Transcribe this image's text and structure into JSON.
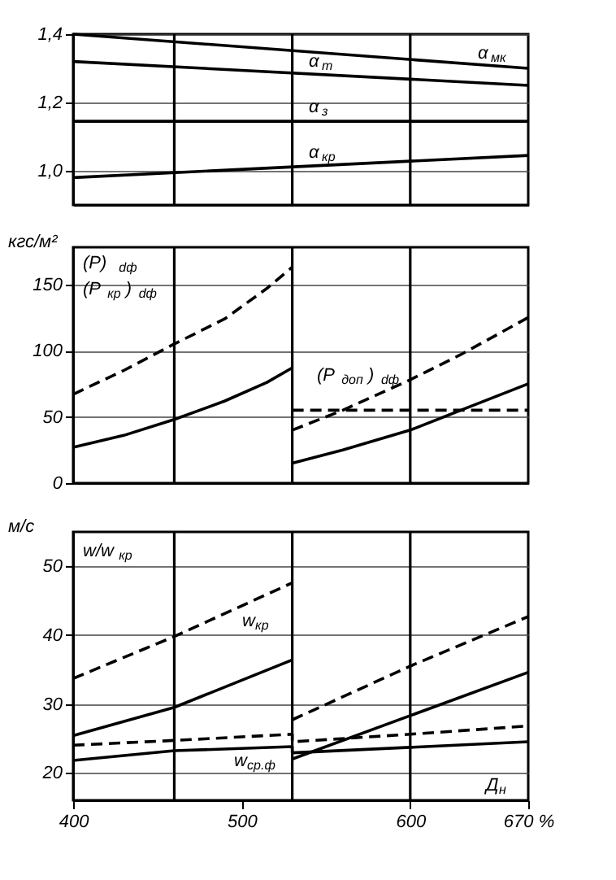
{
  "chart_data": [
    {
      "type": "line",
      "xlim": [
        400,
        670
      ],
      "ylim": [
        0.9,
        1.4
      ],
      "yticks": [
        {
          "value": 1.0,
          "label": "1,0"
        },
        {
          "value": 1.2,
          "label": "1,2"
        },
        {
          "value": 1.4,
          "label": "1,4"
        }
      ],
      "tick_labels": "y",
      "grid": "y",
      "ref_lines": [
        {
          "axis": "x",
          "value": 460
        },
        {
          "axis": "x",
          "value": 530
        },
        {
          "axis": "x",
          "value": 600
        }
      ],
      "series": [
        {
          "color": "#000000",
          "line_style": "solid",
          "x": [
            400,
            670
          ],
          "values": [
            1.4,
            1.3
          ]
        },
        {
          "color": "#000000",
          "line_style": "solid",
          "x": [
            400,
            670
          ],
          "values": [
            1.32,
            1.25
          ]
        },
        {
          "color": "#000000",
          "line_style": "solid",
          "x": [
            400,
            670
          ],
          "values": [
            1.145,
            1.145
          ]
        },
        {
          "color": "#000000",
          "line_style": "solid",
          "x": [
            400,
            670
          ],
          "values": [
            0.98,
            1.045
          ]
        }
      ],
      "annotations": [
        "α$_{мк}$",
        "α$_{т}$",
        "α$_{з}$",
        "α$_{кр}$"
      ]
    },
    {
      "type": "line",
      "xlim": [
        400,
        670
      ],
      "ylim": [
        0,
        178
      ],
      "yticks": [
        0,
        50,
        100,
        150
      ],
      "ylabel": "кгс/м²",
      "tick_labels": "y",
      "grid": "y",
      "ref_lines": [
        {
          "axis": "x",
          "value": 460
        },
        {
          "axis": "x",
          "value": 530
        },
        {
          "axis": "x",
          "value": 600
        }
      ],
      "series": [
        {
          "color": "#000000",
          "line_style": "dashed",
          "x": [
            400,
            430,
            460,
            490,
            515,
            530
          ],
          "values": [
            67,
            85,
            105,
            124,
            147,
            163
          ]
        },
        {
          "color": "#000000",
          "line_style": "solid",
          "x": [
            400,
            430,
            460,
            490,
            515,
            530
          ],
          "values": [
            27,
            36,
            48,
            62,
            76,
            87
          ]
        },
        {
          "color": "#000000",
          "line_style": "dashed",
          "x": [
            530,
            560,
            600,
            630,
            670
          ],
          "values": [
            40,
            55,
            78,
            97,
            125
          ]
        },
        {
          "color": "#000000",
          "line_style": "solid",
          "x": [
            530,
            560,
            600,
            630,
            670
          ],
          "values": [
            15,
            25,
            40,
            55,
            75
          ]
        },
        {
          "color": "#000000",
          "line_style": "dashed",
          "x": [
            530,
            670
          ],
          "values": [
            55,
            55
          ]
        }
      ],
      "annotations": [
        "(P)$_{dф}$",
        "(P$_{кр}$)$_{dф}$",
        "(P$_{доп}$)$_{dф}$"
      ]
    },
    {
      "type": "line",
      "xlim": [
        400,
        670
      ],
      "ylim": [
        16,
        55
      ],
      "xticks": [
        400,
        500,
        600,
        {
          "value": 670,
          "label": "670 %"
        }
      ],
      "yticks": [
        20,
        30,
        40,
        50
      ],
      "ylabel": "м/с",
      "xlabel": "Д$_{н}$",
      "grid": "y",
      "ref_lines": [
        {
          "axis": "x",
          "value": 460
        },
        {
          "axis": "x",
          "value": 530
        },
        {
          "axis": "x",
          "value": 600
        }
      ],
      "series": [
        {
          "color": "#000000",
          "line_style": "dashed",
          "x": [
            400,
            460,
            530
          ],
          "values": [
            33.7,
            39.8,
            47.6
          ]
        },
        {
          "color": "#000000",
          "line_style": "solid",
          "x": [
            400,
            460,
            530
          ],
          "values": [
            25.4,
            29.5,
            36.4
          ]
        },
        {
          "color": "#000000",
          "line_style": "dashed",
          "x": [
            530,
            600,
            670
          ],
          "values": [
            27.7,
            35.5,
            42.7
          ]
        },
        {
          "color": "#000000",
          "line_style": "solid",
          "x": [
            530,
            600,
            670
          ],
          "values": [
            22.0,
            28.3,
            34.6
          ]
        },
        {
          "color": "#000000",
          "line_style": "dashed",
          "x": [
            400,
            460,
            530,
            530,
            600,
            670
          ],
          "values": [
            24.0,
            24.7,
            25.6,
            24.5,
            25.6,
            26.8
          ]
        },
        {
          "color": "#000000",
          "line_style": "solid",
          "x": [
            400,
            460,
            530,
            530,
            670
          ],
          "values": [
            21.8,
            23.2,
            23.8,
            22.9,
            24.5
          ]
        }
      ],
      "annotations": [
        "w/w$_{кр}$",
        "w$_{кр}$",
        "w$_{ср.ф}$"
      ]
    }
  ]
}
